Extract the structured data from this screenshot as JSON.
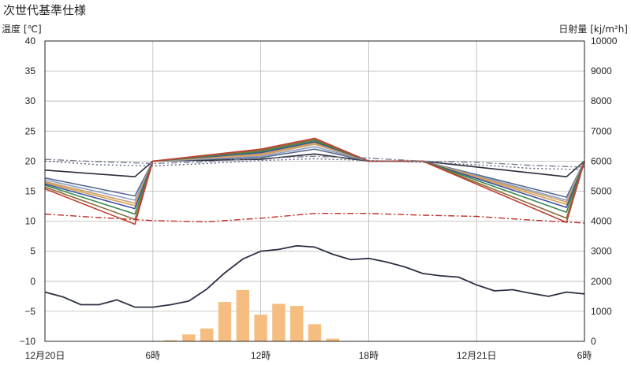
{
  "title": "次世代基準仕様",
  "chart_data": {
    "type": "line",
    "title": "次世代基準仕様",
    "ylabel_left": "温度 [℃]",
    "ylabel_right": "日射量 [kj/m²h]",
    "x_tick_labels": [
      "12月20日",
      "6時",
      "12時",
      "18時",
      "12月21日",
      "6時"
    ],
    "x_range_hours": [
      0,
      30
    ],
    "ylim_left": [
      -10,
      40
    ],
    "ylim_right": [
      0,
      10000
    ],
    "y_ticks_left": [
      "40",
      "35",
      "30",
      "25",
      "20",
      "15",
      "10",
      "5",
      "0",
      "−5",
      "−10"
    ],
    "y_ticks_right": [
      "10000",
      "9000",
      "8000",
      "7000",
      "6000",
      "5000",
      "4000",
      "3000",
      "2000",
      "1000",
      "0"
    ],
    "grid": true,
    "colors": {
      "outdoor": "#2d3146",
      "solar": "#f6bd80",
      "red_dashdot": "#c03028",
      "room_series": [
        "#2b2b3a",
        "#5a6b8f",
        "#8aa0c8",
        "#c9a070",
        "#d8a050",
        "#3c4fa0",
        "#3a8a50",
        "#8a6a38",
        "#c04030"
      ]
    },
    "series": [
      {
        "style": "line",
        "role": "outdoor_temperature",
        "x": [
          0,
          1,
          2,
          3,
          4,
          5,
          6,
          7,
          8,
          9,
          10,
          11,
          12,
          13,
          14,
          15,
          16,
          17,
          18,
          19,
          20,
          21,
          22,
          23,
          24,
          25,
          26,
          27,
          28,
          29,
          30
        ],
        "values": [
          -1.8,
          -2.6,
          -3.9,
          -3.9,
          -3.1,
          -4.3,
          -4.3,
          -3.9,
          -3.3,
          -1.3,
          1.4,
          3.7,
          5.0,
          5.3,
          5.9,
          5.7,
          4.5,
          3.6,
          3.8,
          3.2,
          2.4,
          1.3,
          0.9,
          0.7,
          -0.6,
          -1.6,
          -1.4,
          -2.0,
          -2.5,
          -1.8,
          -2.1
        ]
      },
      {
        "style": "line",
        "role": "room_temperature",
        "x": [
          0,
          5,
          6,
          12,
          15,
          18,
          21,
          29,
          30
        ],
        "values": [
          18.5,
          17.4,
          20,
          20.3,
          21.2,
          20,
          20,
          17.4,
          20
        ]
      },
      {
        "style": "line",
        "role": "room_temperature",
        "x": [
          0,
          5,
          6,
          12,
          15,
          18,
          21,
          29,
          30
        ],
        "values": [
          17.2,
          14.2,
          20,
          20.6,
          22.0,
          20,
          20,
          14.0,
          20
        ]
      },
      {
        "style": "line",
        "role": "room_temperature",
        "x": [
          0,
          5,
          6,
          12,
          15,
          18,
          21,
          29,
          30
        ],
        "values": [
          16.9,
          13.5,
          20,
          20.8,
          22.4,
          20,
          20,
          13.5,
          20
        ]
      },
      {
        "style": "line",
        "role": "room_temperature",
        "x": [
          0,
          5,
          6,
          12,
          15,
          18,
          21,
          29,
          30
        ],
        "values": [
          16.6,
          13.0,
          20,
          21.0,
          22.8,
          20,
          20,
          13.2,
          20
        ]
      },
      {
        "style": "line",
        "role": "room_temperature",
        "x": [
          0,
          5,
          6,
          12,
          15,
          18,
          21,
          29,
          30
        ],
        "values": [
          16.4,
          12.6,
          20,
          21.2,
          23.0,
          20,
          20,
          12.8,
          20
        ]
      },
      {
        "style": "line",
        "role": "room_temperature",
        "x": [
          0,
          5,
          6,
          12,
          15,
          18,
          21,
          29,
          30
        ],
        "values": [
          16.2,
          12.1,
          20,
          21.4,
          23.2,
          20,
          20,
          12.3,
          20
        ]
      },
      {
        "style": "line",
        "role": "room_temperature",
        "x": [
          0,
          5,
          6,
          12,
          15,
          18,
          21,
          29,
          30
        ],
        "values": [
          16.0,
          11.2,
          20,
          21.6,
          23.4,
          20,
          20,
          11.5,
          20
        ]
      },
      {
        "style": "line",
        "role": "room_temperature",
        "x": [
          0,
          5,
          6,
          12,
          15,
          18,
          21,
          29,
          30
        ],
        "values": [
          15.7,
          10.3,
          20,
          21.8,
          23.6,
          20,
          20,
          10.5,
          20
        ]
      },
      {
        "style": "line",
        "role": "room_temperature",
        "x": [
          0,
          5,
          6,
          12,
          15,
          18,
          21,
          29,
          30
        ],
        "values": [
          15.4,
          9.5,
          20,
          22.0,
          23.8,
          20,
          20,
          9.8,
          20
        ]
      },
      {
        "style": "dashdot",
        "role": "red_dashdot",
        "x": [
          0,
          3,
          6,
          9,
          12,
          15,
          18,
          21,
          24,
          27,
          30
        ],
        "values": [
          11.2,
          10.6,
          10.1,
          9.9,
          10.5,
          11.3,
          11.3,
          11.0,
          10.8,
          10.2,
          9.7
        ]
      },
      {
        "style": "dashdot",
        "role": "upper_dashdot",
        "x": [
          0,
          3,
          6,
          9,
          12,
          15,
          18,
          21,
          24,
          27,
          30
        ],
        "values": [
          20.3,
          19.9,
          19.6,
          19.9,
          20.5,
          20.8,
          20.5,
          20.0,
          19.8,
          19.3,
          19.0
        ]
      },
      {
        "style": "dotted",
        "role": "upper_dotted",
        "x": [
          0,
          3,
          6,
          9,
          12,
          15,
          18,
          21,
          24,
          27,
          30
        ],
        "values": [
          20.0,
          19.4,
          19.2,
          19.6,
          20.1,
          20.4,
          20.1,
          19.8,
          19.4,
          18.8,
          18.6
        ]
      },
      {
        "style": "bar",
        "role": "solar_radiation",
        "axis": "right",
        "x": [
          7,
          8,
          9,
          10,
          11,
          12,
          13,
          14,
          15,
          16,
          17
        ],
        "values": [
          40,
          230,
          430,
          1310,
          1710,
          890,
          1250,
          1180,
          570,
          90,
          0
        ]
      }
    ]
  }
}
